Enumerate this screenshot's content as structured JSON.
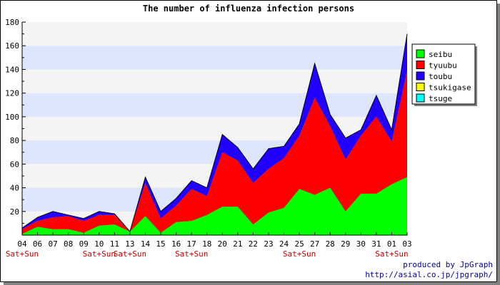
{
  "chart_data": {
    "type": "area",
    "stacked": true,
    "title": "The number of influenza infection persons",
    "categories": [
      "04",
      "06",
      "07",
      "08",
      "09",
      "10",
      "11",
      "13",
      "14",
      "15",
      "16",
      "17",
      "18",
      "20",
      "21",
      "22",
      "23",
      "24",
      "25",
      "27",
      "28",
      "29",
      "30",
      "31",
      "01",
      "03"
    ],
    "weekend_labels": [
      "Sat+Sun",
      "",
      "",
      "",
      "",
      "Sat+Sun",
      "",
      "Sat+Sun",
      "",
      "",
      "",
      "Sat+Sun",
      "",
      "",
      "",
      "",
      "",
      "",
      "Sat+Sun",
      "",
      "",
      "",
      "",
      "",
      "Sat+Sun",
      ""
    ],
    "ylim": [
      0,
      180
    ],
    "yticks": [
      20,
      40,
      60,
      80,
      100,
      120,
      140,
      160,
      180
    ],
    "grid": true,
    "legend_position": "right",
    "series": [
      {
        "name": "seibu",
        "color": "#00ff00",
        "values": [
          1,
          7,
          5,
          5,
          2,
          8,
          9,
          3,
          16,
          2,
          11,
          12,
          17,
          24,
          24,
          9,
          19,
          23,
          39,
          34,
          40,
          20,
          35,
          35,
          43,
          49
        ]
      },
      {
        "name": "tyuubu",
        "color": "#ff0000",
        "values": [
          4,
          5,
          10,
          11,
          10,
          9,
          8,
          0,
          28,
          12,
          14,
          27,
          16,
          46,
          39,
          35,
          37,
          42,
          45,
          82,
          52,
          44,
          49,
          65,
          36,
          90
        ]
      },
      {
        "name": "toubu",
        "color": "#2200ff",
        "values": [
          1,
          3,
          5,
          1,
          2,
          3,
          1,
          0,
          5,
          6,
          6,
          7,
          7,
          15,
          11,
          12,
          17,
          10,
          10,
          29,
          10,
          18,
          5,
          18,
          10,
          31
        ]
      },
      {
        "name": "tsukigase",
        "color": "#ffff00",
        "values": [
          0,
          0,
          0,
          0,
          0,
          0,
          0,
          0,
          0,
          0,
          0,
          0,
          0,
          0,
          0,
          0,
          0,
          0,
          0,
          0,
          0,
          0,
          0,
          0,
          0,
          0
        ]
      },
      {
        "name": "tsuge",
        "color": "#00ffff",
        "values": [
          0,
          0,
          0,
          0,
          0,
          0,
          0,
          0,
          0,
          0,
          0,
          0,
          0,
          0,
          0,
          0,
          0,
          0,
          0,
          0,
          0,
          0,
          0,
          0,
          0,
          0
        ]
      }
    ]
  },
  "footer": {
    "credit": "produced by JpGraph",
    "url": "http://asial.co.jp/jpgraph/"
  }
}
